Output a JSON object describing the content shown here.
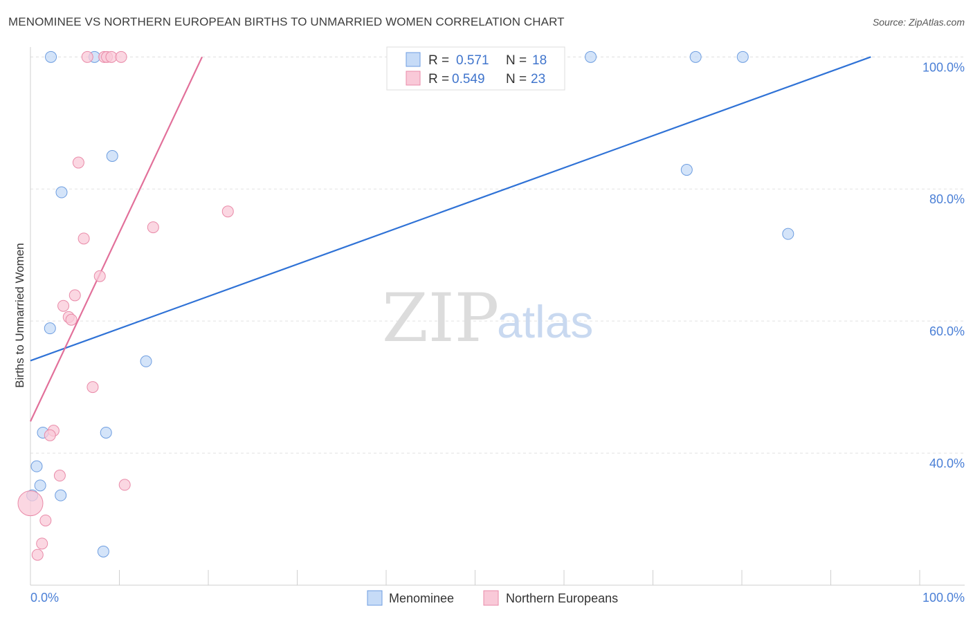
{
  "title": "MENOMINEE VS NORTHERN EUROPEAN BIRTHS TO UNMARRIED WOMEN CORRELATION CHART",
  "source": "Source: ZipAtlas.com",
  "watermark": {
    "zip": "ZIP",
    "atlas": "atlas"
  },
  "chart_data": {
    "type": "scatter",
    "title": "MENOMINEE VS NORTHERN EUROPEAN BIRTHS TO UNMARRIED WOMEN CORRELATION CHART",
    "xlabel": "",
    "ylabel": "Births to Unmarried Women",
    "xlim": [
      0,
      100
    ],
    "ylim": [
      20,
      101.5
    ],
    "x_tick_labels": [
      "0.0%",
      "100.0%"
    ],
    "y_ticks": [
      40,
      60,
      80,
      100
    ],
    "y_tick_labels": [
      "40.0%",
      "60.0%",
      "80.0%",
      "100.0%"
    ],
    "grid": true,
    "legend_position": "top-center",
    "series": [
      {
        "name": "Menominee",
        "color": "#6d9de0",
        "fill": "#c6dbf7",
        "R": "0.571",
        "N": "18",
        "points": [
          {
            "x": 2.3,
            "y": 100
          },
          {
            "x": 7.2,
            "y": 100
          },
          {
            "x": 63.0,
            "y": 100
          },
          {
            "x": 74.8,
            "y": 100
          },
          {
            "x": 80.1,
            "y": 100
          },
          {
            "x": 9.2,
            "y": 85.0
          },
          {
            "x": 73.8,
            "y": 82.9
          },
          {
            "x": 3.5,
            "y": 79.5
          },
          {
            "x": 85.2,
            "y": 73.2
          },
          {
            "x": 2.2,
            "y": 58.9
          },
          {
            "x": 13.0,
            "y": 53.9
          },
          {
            "x": 1.4,
            "y": 43.1
          },
          {
            "x": 8.5,
            "y": 43.1
          },
          {
            "x": 0.7,
            "y": 38.0
          },
          {
            "x": 1.1,
            "y": 35.1
          },
          {
            "x": 0.2,
            "y": 33.6
          },
          {
            "x": 3.4,
            "y": 33.6
          },
          {
            "x": 8.2,
            "y": 25.1
          }
        ],
        "trend": {
          "x": [
            0,
            94.5
          ],
          "y": [
            54.0,
            100
          ]
        }
      },
      {
        "name": "Northern Europeans",
        "color": "#e98aa8",
        "fill": "#f9c9d8",
        "R": "0.549",
        "N": "23",
        "points": [
          {
            "x": 6.4,
            "y": 100
          },
          {
            "x": 8.3,
            "y": 100
          },
          {
            "x": 8.6,
            "y": 100
          },
          {
            "x": 9.1,
            "y": 100
          },
          {
            "x": 10.2,
            "y": 100
          },
          {
            "x": 5.4,
            "y": 84.0
          },
          {
            "x": 22.2,
            "y": 76.6
          },
          {
            "x": 13.8,
            "y": 74.2
          },
          {
            "x": 6.0,
            "y": 72.5
          },
          {
            "x": 7.8,
            "y": 66.8
          },
          {
            "x": 5.0,
            "y": 63.9
          },
          {
            "x": 3.7,
            "y": 62.3
          },
          {
            "x": 4.3,
            "y": 60.6
          },
          {
            "x": 4.6,
            "y": 60.2
          },
          {
            "x": 7.0,
            "y": 50.0
          },
          {
            "x": 2.6,
            "y": 43.4
          },
          {
            "x": 2.2,
            "y": 42.7
          },
          {
            "x": 3.3,
            "y": 36.6
          },
          {
            "x": 10.6,
            "y": 35.2
          },
          {
            "x": 0.0,
            "y": 32.4
          },
          {
            "x": 1.7,
            "y": 29.8
          },
          {
            "x": 1.3,
            "y": 26.3
          },
          {
            "x": 0.8,
            "y": 24.6
          }
        ],
        "trend": {
          "x": [
            0,
            19.3
          ],
          "y": [
            44.8,
            100
          ]
        }
      }
    ]
  }
}
